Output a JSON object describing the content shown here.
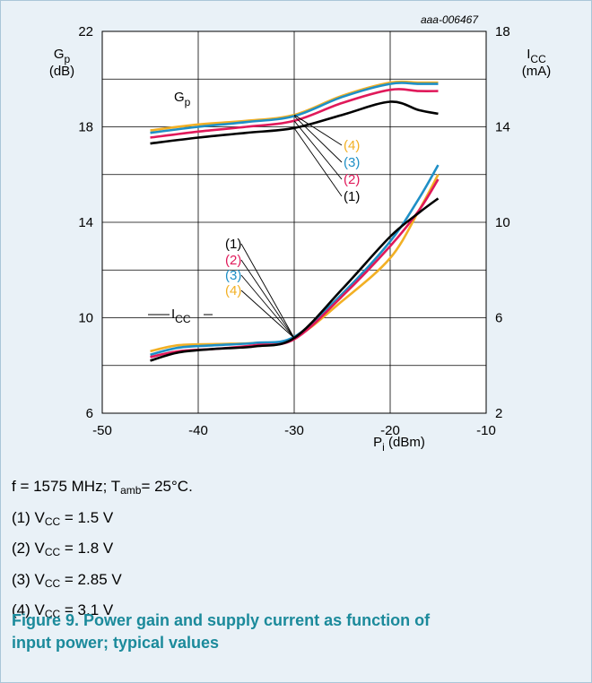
{
  "chart_data": {
    "type": "line",
    "code": "aaa-006467",
    "x_axis": {
      "label_main": "P",
      "label_sub": "i",
      "label_unit": " (dBm)",
      "range": [
        -50,
        -10
      ],
      "ticks": [
        "-50",
        "-40",
        "-30",
        "-20",
        "-10"
      ]
    },
    "y_left": {
      "label_main": "G",
      "label_sub": "p",
      "label_unit": "(dB)",
      "range": [
        6,
        22
      ],
      "ticks": [
        "6",
        "10",
        "14",
        "18",
        "22"
      ]
    },
    "y_right": {
      "label_main": "I",
      "label_sub": "CC",
      "label_unit": "(mA)",
      "range": [
        2,
        18
      ],
      "ticks": [
        "2",
        "6",
        "10",
        "14",
        "18"
      ]
    },
    "grid": true,
    "curve_labels": {
      "gp": {
        "main": "G",
        "sub": "p"
      },
      "icc": {
        "main": "I",
        "sub": "CC"
      }
    },
    "series_labels": [
      "(1)",
      "(2)",
      "(3)",
      "(4)"
    ],
    "colors": [
      "#000000",
      "#e0195a",
      "#1e8fc6",
      "#f2b024"
    ],
    "gp_series": [
      {
        "name": "(1)",
        "points": [
          [
            -45,
            17.3
          ],
          [
            -40,
            17.55
          ],
          [
            -35,
            17.75
          ],
          [
            -30,
            17.95
          ],
          [
            -25,
            18.5
          ],
          [
            -20,
            19.05
          ],
          [
            -17,
            18.7
          ],
          [
            -15,
            18.55
          ]
        ]
      },
      {
        "name": "(2)",
        "points": [
          [
            -45,
            17.55
          ],
          [
            -40,
            17.8
          ],
          [
            -35,
            18.0
          ],
          [
            -30,
            18.25
          ],
          [
            -25,
            19.0
          ],
          [
            -20,
            19.55
          ],
          [
            -17,
            19.5
          ],
          [
            -15,
            19.5
          ]
        ]
      },
      {
        "name": "(3)",
        "points": [
          [
            -45,
            17.75
          ],
          [
            -40,
            18.0
          ],
          [
            -35,
            18.2
          ],
          [
            -30,
            18.45
          ],
          [
            -25,
            19.25
          ],
          [
            -20,
            19.8
          ],
          [
            -17,
            19.8
          ],
          [
            -15,
            19.8
          ]
        ]
      },
      {
        "name": "(4)",
        "points": [
          [
            -45,
            17.85
          ],
          [
            -40,
            18.1
          ],
          [
            -35,
            18.25
          ],
          [
            -30,
            18.5
          ],
          [
            -25,
            19.3
          ],
          [
            -20,
            19.85
          ],
          [
            -17,
            19.85
          ],
          [
            -15,
            19.85
          ]
        ]
      }
    ],
    "icc_series": [
      {
        "name": "(1)",
        "points": [
          [
            -45,
            4.2
          ],
          [
            -42,
            4.55
          ],
          [
            -38,
            4.7
          ],
          [
            -34,
            4.8
          ],
          [
            -30,
            5.15
          ],
          [
            -25,
            7.2
          ],
          [
            -20,
            9.4
          ],
          [
            -17,
            10.4
          ],
          [
            -15,
            11.0
          ]
        ]
      },
      {
        "name": "(2)",
        "points": [
          [
            -45,
            4.35
          ],
          [
            -42,
            4.6
          ],
          [
            -38,
            4.7
          ],
          [
            -34,
            4.85
          ],
          [
            -30,
            5.1
          ],
          [
            -25,
            6.9
          ],
          [
            -20,
            9.0
          ],
          [
            -17,
            10.5
          ],
          [
            -15,
            11.8
          ]
        ]
      },
      {
        "name": "(3)",
        "points": [
          [
            -45,
            4.45
          ],
          [
            -42,
            4.75
          ],
          [
            -38,
            4.85
          ],
          [
            -34,
            4.95
          ],
          [
            -30,
            5.2
          ],
          [
            -25,
            7.0
          ],
          [
            -20,
            9.2
          ],
          [
            -17,
            11.0
          ],
          [
            -15,
            12.4
          ]
        ]
      },
      {
        "name": "(4)",
        "points": [
          [
            -45,
            4.6
          ],
          [
            -42,
            4.85
          ],
          [
            -38,
            4.9
          ],
          [
            -34,
            4.95
          ],
          [
            -30,
            5.15
          ],
          [
            -25,
            6.7
          ],
          [
            -20,
            8.5
          ],
          [
            -17,
            10.5
          ],
          [
            -15,
            12.0
          ]
        ]
      }
    ]
  },
  "notes": {
    "conditions_a": "f = 1575 MHz; T",
    "conditions_sub": "amb",
    "conditions_b": "= 25°C.",
    "vcc_main": "V",
    "vcc_sub": "CC",
    "items": [
      {
        "num": "(1) ",
        "value": " = 1.5 V"
      },
      {
        "num": "(2) ",
        "value": " = 1.8 V"
      },
      {
        "num": "(3) ",
        "value": " = 2.85 V"
      },
      {
        "num": "(4) ",
        "value": " = 3.1 V"
      }
    ]
  },
  "caption": {
    "line1": "Figure 9.  Power gain and supply current as function of",
    "line2": "input power; typical values"
  }
}
